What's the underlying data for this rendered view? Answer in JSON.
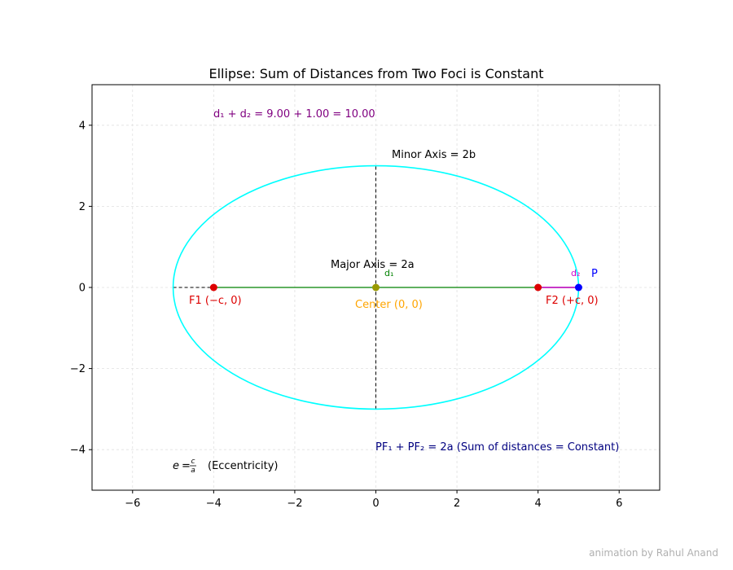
{
  "chart_data": {
    "type": "line",
    "title": "Ellipse: Sum of Distances from Two Foci is Constant",
    "xlabel": "",
    "ylabel": "",
    "xlim": [
      -7,
      7
    ],
    "ylim": [
      -5,
      5
    ],
    "x_ticks": [
      -6,
      -4,
      -2,
      0,
      2,
      4,
      6
    ],
    "x_tick_labels": [
      "−6",
      "−4",
      "−2",
      "0",
      "2",
      "4",
      "6"
    ],
    "y_ticks": [
      -4,
      -2,
      0,
      2,
      4
    ],
    "y_tick_labels": [
      "−4",
      "−2",
      "0",
      "2",
      "4"
    ],
    "grid": true,
    "ellipse": {
      "center": [
        0,
        0
      ],
      "a": 5,
      "b": 3,
      "color": "#00ffff"
    },
    "axes_lines": {
      "major_axis": [
        [
          -5,
          0
        ],
        [
          5,
          0
        ]
      ],
      "minor_axis": [
        [
          0,
          -3
        ],
        [
          0,
          3
        ]
      ]
    },
    "segments": {
      "d1": {
        "from": [
          -4,
          0
        ],
        "to": [
          5,
          0
        ],
        "color": "#008000"
      },
      "d2": {
        "from": [
          4,
          0
        ],
        "to": [
          5,
          0
        ],
        "color": "#cc00cc"
      }
    },
    "points": [
      {
        "name": "F1",
        "x": -4,
        "y": 0,
        "color": "#dd0000"
      },
      {
        "name": "F2",
        "x": 4,
        "y": 0,
        "color": "#dd0000"
      },
      {
        "name": "Center",
        "x": 0,
        "y": 0,
        "color": "#999900"
      },
      {
        "name": "P",
        "x": 5,
        "y": 0,
        "color": "#0000ff"
      }
    ],
    "annotations": {
      "f1_label": "F1 (−c, 0)",
      "f2_label": "F2 (+c, 0)",
      "center_label": "Center (0, 0)",
      "p_label": "P",
      "d1_label": "d₁",
      "d2_label": "d₂",
      "major_axis_label": "Major Axis = 2a",
      "minor_axis_label": "Minor Axis = 2b",
      "sum_label": "d₁ + d₂ = 9.00 + 1.00 = 10.00",
      "pf_label": "PF₁ + PF₂ = 2a  (Sum of distances = Constant)",
      "ecc_label": "(Eccentricity)"
    },
    "annotation_colors": {
      "focus": "#dd0000",
      "center": "#ffa500",
      "p": "#0000ff",
      "d1": "#008000",
      "d2": "#cc00cc",
      "sum": "#800080",
      "pf": "#000080",
      "black": "#000000"
    }
  },
  "credit": "animation by Rahul Anand"
}
